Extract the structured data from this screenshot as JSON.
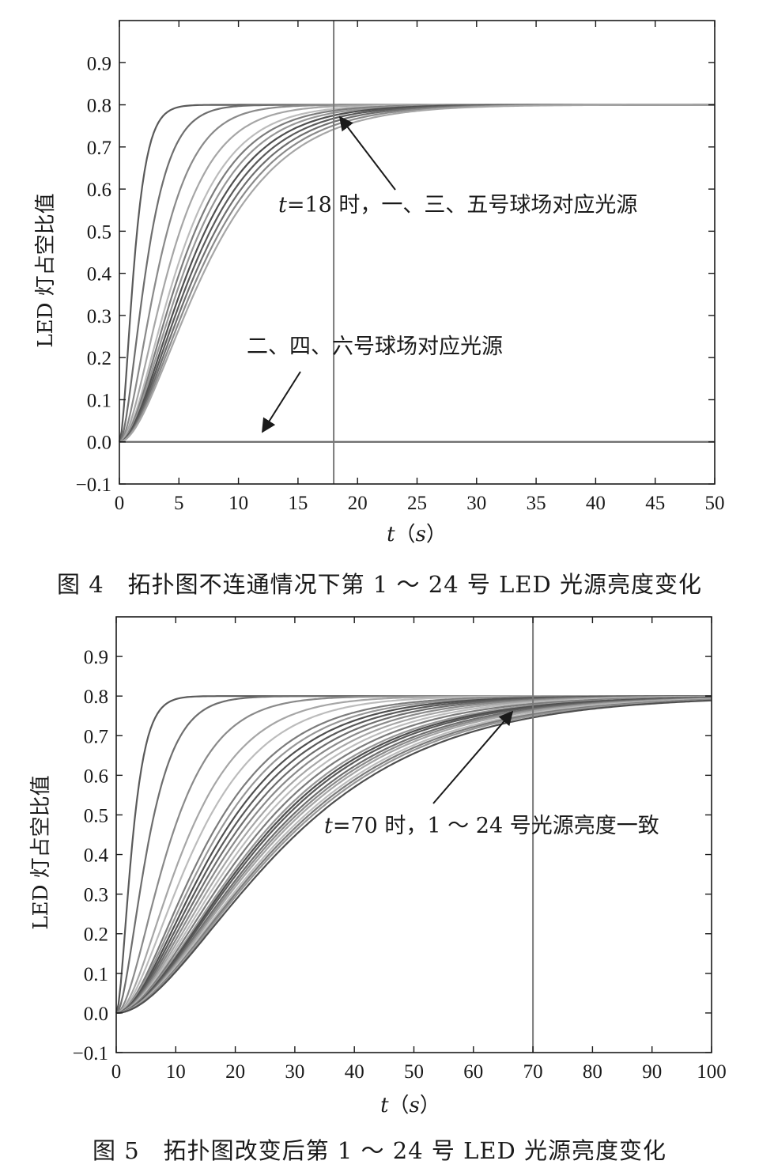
{
  "chart_data": [
    {
      "type": "line",
      "xlabel_var": "t",
      "xlabel_unit": "s",
      "ylabel": "LED 灯占空比值",
      "xlim": [
        0,
        50
      ],
      "ylim": [
        -0.1,
        1.0
      ],
      "x_ticks": [
        0,
        5,
        10,
        15,
        20,
        25,
        30,
        35,
        40,
        45,
        50
      ],
      "y_ticks": [
        -0.1,
        0.0,
        0.1,
        0.2,
        0.3,
        0.4,
        0.5,
        0.6,
        0.7,
        0.8,
        0.9
      ],
      "grid": false,
      "final_value": 0.8,
      "vertical_marker_x": 18,
      "series_groups": [
        {
          "description_text": "一、三、五号球场对应光源",
          "final_value": 0.8,
          "time_constants": [
            0.7,
            1.3,
            1.9,
            2.4,
            2.8,
            3.0,
            3.2,
            3.4,
            3.6,
            3.8,
            4.0,
            4.2
          ]
        },
        {
          "description_text": "二、四、六号球场对应光源",
          "final_value": 0.0
        }
      ],
      "annotations": [
        {
          "label_var": "t",
          "label_text": "=18 时，一、三、五号球场对应光源"
        },
        {
          "label_text": "二、四、六号球场对应光源"
        }
      ],
      "caption": "图 4　拓扑图不连通情况下第 1 ～ 24 号 LED 光源亮度变化"
    },
    {
      "type": "line",
      "xlabel_var": "t",
      "xlabel_unit": "s",
      "ylabel": "LED 灯占空比值",
      "xlim": [
        0,
        100
      ],
      "ylim": [
        -0.1,
        1.0
      ],
      "x_ticks": [
        0,
        10,
        20,
        30,
        40,
        50,
        60,
        70,
        80,
        90,
        100
      ],
      "y_ticks": [
        -0.1,
        0.0,
        0.1,
        0.2,
        0.3,
        0.4,
        0.5,
        0.6,
        0.7,
        0.8,
        0.9
      ],
      "grid": false,
      "final_value": 0.8,
      "vertical_marker_x": 70,
      "time_constants": [
        1.5,
        3.0,
        5.0,
        6.5,
        7.5,
        8.5,
        9.0,
        9.5,
        10.0,
        10.5,
        11.0,
        11.5,
        12.0,
        12.5,
        13.0,
        13.3,
        13.6,
        14.0,
        14.3,
        14.6,
        15.0,
        15.3,
        15.6,
        16.0
      ],
      "annotations": [
        {
          "label_var": "t",
          "label_text": "=70 时，1 ～ 24 号光源亮度一致"
        }
      ],
      "caption": "图 5　拓扑图改变后第 1 ～ 24 号 LED 光源亮度变化"
    }
  ],
  "colors": {
    "axis": "#1a1a1a",
    "series": [
      "#5a5a5a",
      "#6e6e6e",
      "#8a8a8a",
      "#a6a6a6",
      "#bcbcbc",
      "#7c7c7c",
      "#969696",
      "#4f4f4f"
    ],
    "marker": "#7a7a7a"
  }
}
